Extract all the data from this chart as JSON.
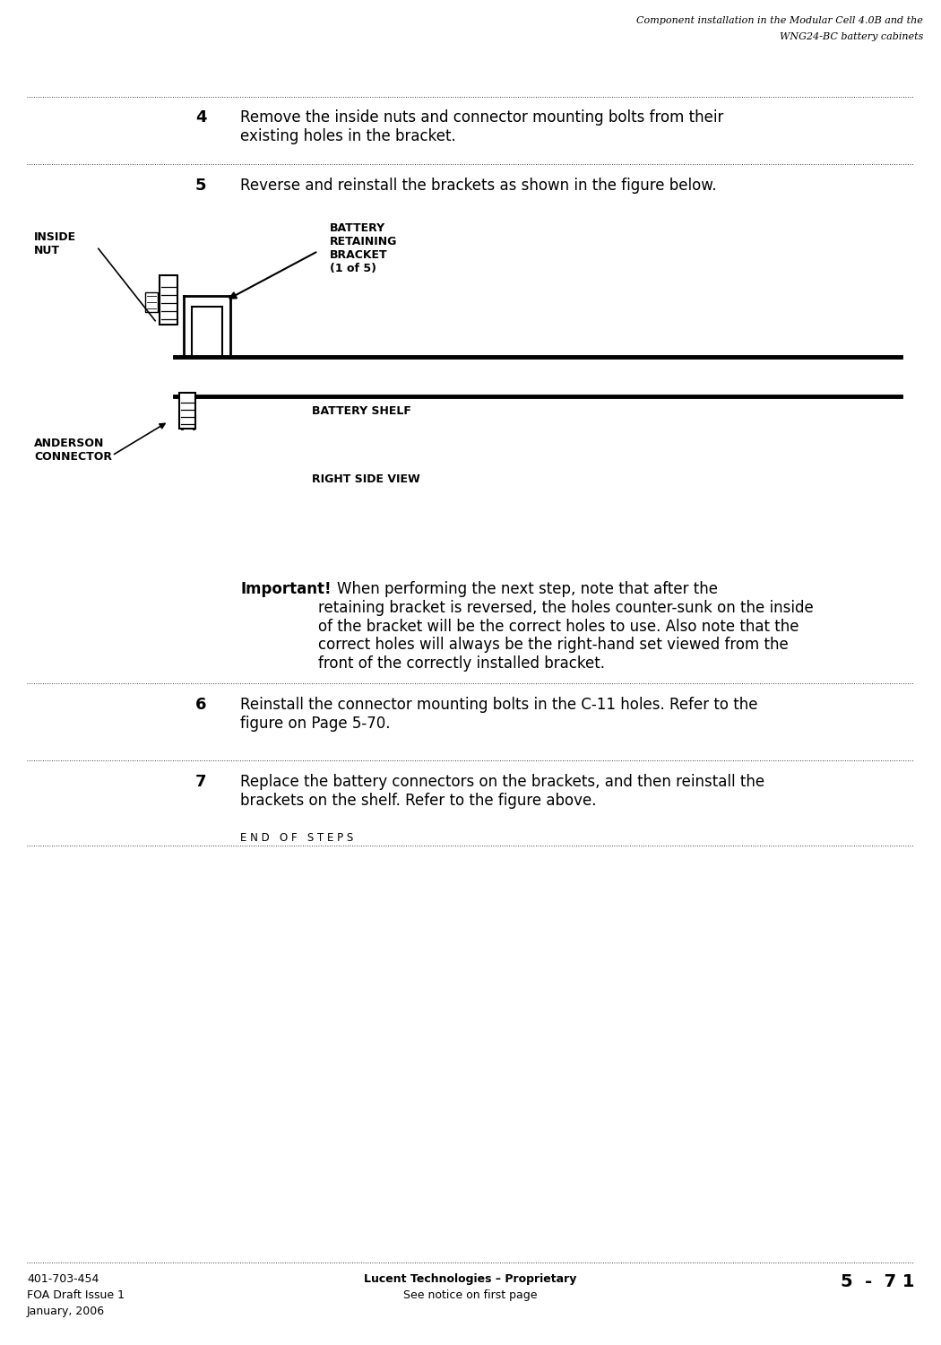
{
  "bg_color": "#ffffff",
  "header_title_line1": "Component installation in the Modular Cell 4.0B and the",
  "header_title_line2": "WNG24-BC battery cabinets",
  "footer_left_line1": "401-703-454",
  "footer_left_line2": "FOA Draft Issue 1",
  "footer_left_line3": "January, 2006",
  "footer_center_line1": "Lucent Technologies – Proprietary",
  "footer_center_line2": "See notice on first page",
  "footer_right": "5  -  7 1",
  "step4_num": "4",
  "step4_text": "Remove the inside nuts and connector mounting bolts from their\nexisting holes in the bracket.",
  "step5_num": "5",
  "step5_text": "Reverse and reinstall the brackets as shown in the figure below.",
  "step5_note_bold": "Important!",
  "step5_note_text": "    When performing the next step, note that after the\nretaining bracket is reversed, the holes counter-sunk on the inside\nof the bracket will be the correct holes to use. Also note that the\ncorrect holes will always be the right-hand set viewed from the\nfront of the correctly installed bracket.",
  "step6_num": "6",
  "step6_text": "Reinstall the connector mounting bolts in the C-11 holes. Refer to the\nfigure on Page 5-70.",
  "step7_num": "7",
  "step7_text": "Replace the battery connectors on the brackets, and then reinstall the\nbrackets on the shelf. Refer to the figure above.",
  "end_of_steps": "E N D   O F   S T E P S",
  "label_inside_nut": "INSIDE\nNUT",
  "label_battery_retaining": "BATTERY\nRETAINING\nBRACKET\n(1 of 5)",
  "label_battery_shelf": "BATTERY SHELF",
  "label_right_side_view": "RIGHT SIDE VIEW",
  "label_anderson_connector": "ANDERSON\nCONNECTOR"
}
